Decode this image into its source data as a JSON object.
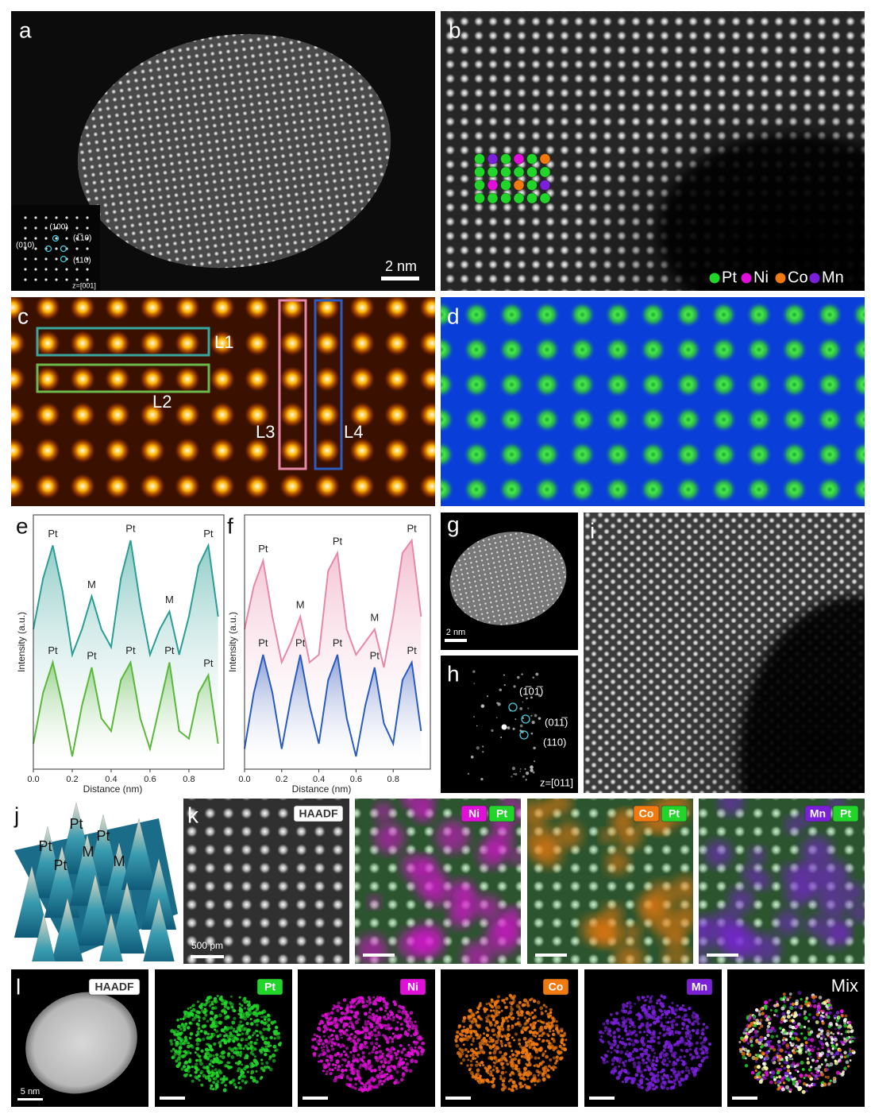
{
  "panels": {
    "a": {
      "label": "a",
      "scale_bar": "2 nm",
      "fft": {
        "spots": [
          "(100)",
          "(010)",
          "(1̅10)",
          "(110)"
        ],
        "zone": "z=[001]"
      }
    },
    "b": {
      "label": "b",
      "legend": [
        {
          "name": "Pt",
          "color": "#22d52a"
        },
        {
          "name": "Ni",
          "color": "#e010d8"
        },
        {
          "name": "Co",
          "color": "#f07a10"
        },
        {
          "name": "Mn",
          "color": "#7a20d8"
        }
      ]
    },
    "c": {
      "label": "c",
      "lines": [
        {
          "name": "L1",
          "color": "#3aa6a0"
        },
        {
          "name": "L2",
          "color": "#6cb84a"
        },
        {
          "name": "L3",
          "color": "#e888a8"
        },
        {
          "name": "L4",
          "color": "#2a5cc0"
        }
      ]
    },
    "d": {
      "label": "d"
    },
    "e": {
      "label": "e",
      "type": "line",
      "x_label": "Distance (nm)",
      "y_label": "Intensity (a.u.)",
      "xlim": [
        0,
        0.98
      ],
      "ylim": [
        0,
        1
      ],
      "xticks": [
        {
          "value": 0,
          "label": "0.0"
        },
        0.2,
        0.4,
        0.6,
        0.8
      ],
      "x": [
        0,
        0.05,
        0.1,
        0.15,
        0.2,
        0.25,
        0.3,
        0.35,
        0.4,
        0.45,
        0.5,
        0.55,
        0.6,
        0.65,
        0.7,
        0.75,
        0.8,
        0.85,
        0.9,
        0.95
      ],
      "series": [
        {
          "color": "#2a9e94",
          "values": [
            0.55,
            0.75,
            0.88,
            0.7,
            0.45,
            0.55,
            0.68,
            0.55,
            0.48,
            0.75,
            0.9,
            0.65,
            0.45,
            0.55,
            0.62,
            0.45,
            0.6,
            0.8,
            0.88,
            0.6
          ],
          "peaks": [
            {
              "text": "Pt",
              "x": 0.1
            },
            {
              "text": "M",
              "x": 0.3
            },
            {
              "text": "Pt",
              "x": 0.5
            },
            {
              "text": "M",
              "x": 0.7
            },
            {
              "text": "Pt",
              "x": 0.9
            }
          ]
        },
        {
          "color": "#5ab83a",
          "values": [
            0.1,
            0.3,
            0.42,
            0.25,
            0.05,
            0.25,
            0.4,
            0.2,
            0.15,
            0.35,
            0.42,
            0.2,
            0.08,
            0.25,
            0.42,
            0.15,
            0.12,
            0.3,
            0.37,
            0.1
          ],
          "peaks": [
            {
              "text": "Pt",
              "x": 0.1
            },
            {
              "text": "Pt",
              "x": 0.3
            },
            {
              "text": "Pt",
              "x": 0.5
            },
            {
              "text": "Pt",
              "x": 0.7
            },
            {
              "text": "Pt",
              "x": 0.9
            }
          ]
        }
      ]
    },
    "f": {
      "label": "f",
      "type": "line",
      "x_label": "Distance (nm)",
      "y_label": "Intensity (a.u.)",
      "xlim": [
        0,
        1.0
      ],
      "ylim": [
        0,
        1
      ],
      "xticks": [
        {
          "value": 0,
          "label": "0.0"
        },
        0.2,
        0.4,
        0.6,
        0.8
      ],
      "x": [
        0,
        0.05,
        0.1,
        0.15,
        0.2,
        0.25,
        0.3,
        0.35,
        0.4,
        0.45,
        0.5,
        0.55,
        0.6,
        0.65,
        0.7,
        0.75,
        0.8,
        0.85,
        0.9,
        0.95
      ],
      "series": [
        {
          "color": "#e888a8",
          "values": [
            0.55,
            0.72,
            0.82,
            0.6,
            0.42,
            0.5,
            0.6,
            0.42,
            0.45,
            0.78,
            0.85,
            0.55,
            0.45,
            0.5,
            0.55,
            0.4,
            0.6,
            0.85,
            0.9,
            0.6
          ],
          "peaks": [
            {
              "text": "Pt",
              "x": 0.1
            },
            {
              "text": "M",
              "x": 0.3
            },
            {
              "text": "Pt",
              "x": 0.5
            },
            {
              "text": "M",
              "x": 0.7
            },
            {
              "text": "Pt",
              "x": 0.9
            }
          ]
        },
        {
          "color": "#2a5cc0",
          "values": [
            0.08,
            0.3,
            0.45,
            0.3,
            0.08,
            0.28,
            0.45,
            0.25,
            0.1,
            0.35,
            0.45,
            0.2,
            0.05,
            0.25,
            0.4,
            0.18,
            0.1,
            0.35,
            0.42,
            0.15
          ],
          "peaks": [
            {
              "text": "Pt",
              "x": 0.1
            },
            {
              "text": "Pt",
              "x": 0.3
            },
            {
              "text": "Pt",
              "x": 0.5
            },
            {
              "text": "Pt",
              "x": 0.7
            },
            {
              "text": "Pt",
              "x": 0.9
            }
          ]
        }
      ]
    },
    "g": {
      "label": "g",
      "scale_bar": "2 nm"
    },
    "h": {
      "label": "h",
      "spots": [
        "(1̅01̅)",
        "(011̅)",
        "(110)"
      ],
      "zone": "z=[011]"
    },
    "i": {
      "label": "i"
    },
    "j": {
      "label": "j",
      "peaks": [
        "Pt",
        "Pt",
        "Pt",
        "Pt",
        "M",
        "M"
      ]
    },
    "k": {
      "label": "k",
      "scale_bar": "500 pm",
      "maps": [
        [
          "HAADF"
        ],
        [
          "Ni",
          "Pt"
        ],
        [
          "Co",
          "Pt"
        ],
        [
          "Mn",
          "Pt"
        ]
      ]
    },
    "l": {
      "label": "l",
      "scale_bar": "5 nm",
      "maps": [
        "HAADF",
        "Pt",
        "Ni",
        "Co",
        "Mn",
        "Mix"
      ]
    }
  }
}
